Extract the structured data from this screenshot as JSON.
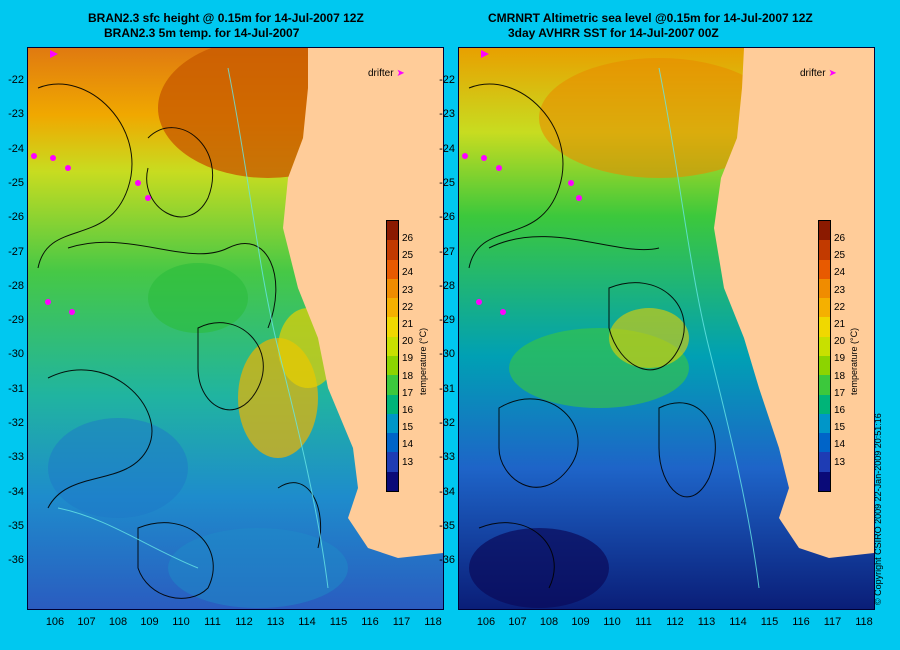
{
  "left": {
    "title_line1": "BRAN2.3 sfc height @ 0.15m for 14-Jul-2007 12Z",
    "title_line2": "BRAN2.3 5m temp. for 14-Jul-2007"
  },
  "right": {
    "title_line1": "CMRNRT Altimetric sea level  @0.15m  for 14-Jul-2007 12Z",
    "title_line2": "3day AVHRR SST for 14-Jul-2007 00Z"
  },
  "drifter_label": "drifter",
  "lat_ticks": [
    "-22",
    "-23",
    "-24",
    "-25",
    "-26",
    "-27",
    "-28",
    "-29",
    "-30",
    "-31",
    "-32",
    "-33",
    "-34",
    "-35",
    "-36"
  ],
  "lon_ticks": [
    "106",
    "107",
    "108",
    "109",
    "110",
    "111",
    "112",
    "113",
    "114",
    "115",
    "116",
    "117",
    "118"
  ],
  "colorbar": {
    "title": "temperature (°C)",
    "ticks": [
      "26",
      "25",
      "24",
      "23",
      "22",
      "21",
      "20",
      "19",
      "18",
      "17",
      "16",
      "15",
      "14",
      "13"
    ],
    "colors": [
      "#8b1a00",
      "#c23a00",
      "#e85a00",
      "#f08c00",
      "#f5b000",
      "#f0d800",
      "#c8e000",
      "#8cd400",
      "#3cc83c",
      "#00b478",
      "#0096c8",
      "#0064c8",
      "#1e3cb4",
      "#0a0a78"
    ]
  },
  "copyright": "© Copyright CSIRO 2009   22-Jan-2009 20:51:16",
  "colors": {
    "background": "#00c8f0",
    "land": "#ffcc99",
    "magenta": "#ff00ff"
  }
}
